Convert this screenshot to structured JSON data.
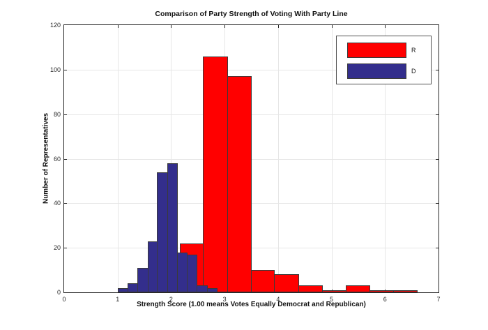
{
  "figure": {
    "background": "#ffffff",
    "axis_color": "#262626",
    "grid_color": "#e6e6e6",
    "bar_edge_color": "#3a3a3a",
    "text_color": "#111111"
  },
  "chart_data": {
    "type": "bar",
    "subtype": "overlaid-histograms",
    "title": "Comparison of Party Strength of Voting With Party Line",
    "xlabel": "Strength Score (1.00 means Votes Equally Democrat and Republican)",
    "ylabel": "Number of Representatives",
    "xlim": [
      0,
      7
    ],
    "ylim": [
      0,
      120
    ],
    "xticks": [
      0,
      1,
      2,
      3,
      4,
      5,
      6,
      7
    ],
    "yticks": [
      0,
      20,
      40,
      60,
      80,
      100,
      120
    ],
    "grid": true,
    "legend": {
      "position": "top-right",
      "entries": [
        {
          "label": "R",
          "color": "#ff0000"
        },
        {
          "label": "D",
          "color": "#332e8c"
        }
      ]
    },
    "series": [
      {
        "name": "R",
        "color": "#ff0000",
        "bin_edges": [
          2.16,
          2.6,
          3.05,
          3.49,
          3.93,
          4.38,
          4.82,
          5.26,
          5.71,
          6.15,
          6.59
        ],
        "counts": [
          22,
          106,
          97,
          10,
          8,
          3,
          1,
          3,
          1,
          1
        ]
      },
      {
        "name": "D",
        "color": "#332e8c",
        "bin_edges": [
          1.0,
          1.19,
          1.37,
          1.56,
          1.74,
          1.93,
          2.11,
          2.3,
          2.48,
          2.67,
          2.85
        ],
        "counts": [
          2,
          4,
          11,
          23,
          54,
          58,
          18,
          17,
          3,
          2
        ]
      }
    ]
  }
}
